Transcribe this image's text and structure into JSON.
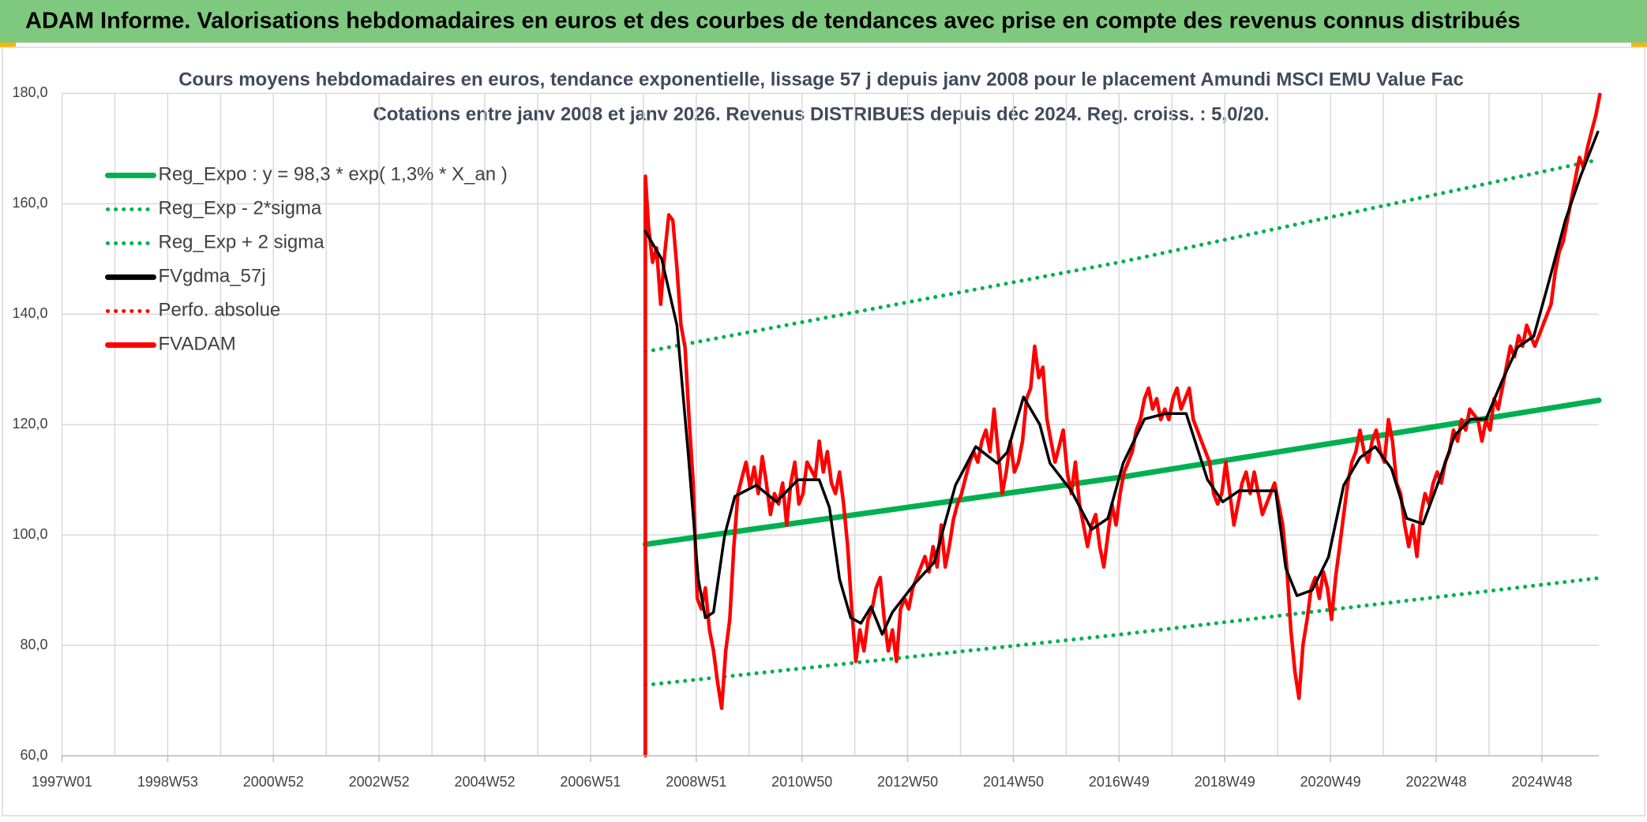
{
  "header": "ADAM Informe. Valorisations hebdomadaires en euros et des courbes de tendances avec prise en compte des revenus connus distribués",
  "chart_data": {
    "type": "line",
    "title": "Cours moyens hebdomadaires en euros, tendance exponentielle, lissage 57 j depuis janv 2008 pour le placement Amundi MSCI EMU Value Fac",
    "subtitle": "Cotations entre janv 2008 et janv 2026. Revenus DISTRIBUES depuis déc 2024. Reg. croiss. : 5,0/20.",
    "xlim": [
      0,
      1512
    ],
    "xticks": [
      {
        "value": 0,
        "label": "1997W01"
      },
      {
        "value": 104,
        "label": "1998W53"
      },
      {
        "value": 208,
        "label": "2000W52"
      },
      {
        "value": 312,
        "label": "2002W52"
      },
      {
        "value": 416,
        "label": "2004W52"
      },
      {
        "value": 520,
        "label": "2006W51"
      },
      {
        "value": 624,
        "label": "2008W51"
      },
      {
        "value": 728,
        "label": "2010W50"
      },
      {
        "value": 832,
        "label": "2012W50"
      },
      {
        "value": 936,
        "label": "2014W50"
      },
      {
        "value": 1040,
        "label": "2016W49"
      },
      {
        "value": 1144,
        "label": "2018W49"
      },
      {
        "value": 1248,
        "label": "2020W49"
      },
      {
        "value": 1352,
        "label": "2022W48"
      },
      {
        "value": 1456,
        "label": "2024W48"
      }
    ],
    "ylim": [
      60,
      180
    ],
    "yticks": [
      {
        "value": 60,
        "label": "60,0"
      },
      {
        "value": 80,
        "label": "80,0"
      },
      {
        "value": 100,
        "label": "100,0"
      },
      {
        "value": 120,
        "label": "120,0"
      },
      {
        "value": 140,
        "label": "140,0"
      },
      {
        "value": 160,
        "label": "160,0"
      },
      {
        "value": 180,
        "label": "180,0"
      }
    ],
    "grid": true,
    "legend": "upper left",
    "series": [
      {
        "name": "Reg_Expo : y = 98,3 * exp( 1,3% *  X_an )",
        "color": "#00b050",
        "style": "solid",
        "x": [
          574,
          1043,
          1512
        ],
        "values": [
          98.3,
          110.5,
          124.4
        ]
      },
      {
        "name": "Reg_Exp - 2*sigma",
        "color": "#00b050",
        "style": "dotted",
        "x": [
          574,
          1043,
          1512
        ],
        "values": [
          72.8,
          82.0,
          92.2
        ]
      },
      {
        "name": "Reg_Exp + 2 sigma",
        "color": "#00b050",
        "style": "dotted",
        "x": [
          574,
          1043,
          1512
        ],
        "values": [
          133.2,
          149.5,
          168.0
        ]
      },
      {
        "name": "FVgdma_57j",
        "color": "#000000",
        "style": "solid",
        "x": [
          574,
          590,
          605,
          616,
          626,
          633,
          641,
          652,
          662,
          683,
          703,
          724,
          745,
          755,
          765,
          776,
          786,
          796,
          807,
          817,
          838,
          858,
          879,
          899,
          920,
          930,
          946,
          962,
          972,
          993,
          1013,
          1029,
          1044,
          1065,
          1086,
          1106,
          1127,
          1142,
          1158,
          1173,
          1194,
          1204,
          1215,
          1230,
          1246,
          1261,
          1277,
          1292,
          1308,
          1323,
          1339,
          1355,
          1370,
          1386,
          1401,
          1417,
          1432,
          1448,
          1463,
          1479,
          1494,
          1511
        ],
        "values": [
          155,
          150,
          138,
          115,
          92,
          85,
          86,
          100,
          107,
          109,
          106,
          110,
          110,
          105,
          92,
          85,
          84,
          87,
          82,
          86,
          91,
          95,
          109,
          116,
          113,
          115,
          125,
          120,
          113,
          108,
          101,
          103,
          113,
          121,
          122,
          122,
          110,
          106,
          108,
          108,
          108,
          94,
          89,
          90,
          96,
          109,
          114,
          116,
          112,
          103,
          102,
          110,
          118,
          121,
          121,
          128,
          134,
          136,
          146,
          157,
          165,
          173
        ]
      },
      {
        "name": "Perfo. absolue",
        "color": "#ff0000",
        "style": "dotted",
        "x": [
          574,
          1043,
          1512
        ],
        "values": [
          null,
          null,
          null
        ]
      },
      {
        "name": "FVADAM",
        "color": "#ff0000",
        "style": "solid",
        "x": [
          574,
          574,
          577,
          581,
          585,
          589,
          593,
          597,
          601,
          605,
          609,
          613,
          617,
          621,
          625,
          629,
          633,
          637,
          641,
          645,
          649,
          653,
          657,
          661,
          665,
          669,
          673,
          677,
          681,
          685,
          689,
          693,
          697,
          701,
          705,
          709,
          713,
          717,
          721,
          725,
          729,
          733,
          737,
          741,
          745,
          749,
          753,
          757,
          761,
          765,
          769,
          773,
          777,
          781,
          785,
          789,
          793,
          797,
          801,
          805,
          809,
          813,
          817,
          821,
          825,
          829,
          833,
          837,
          841,
          845,
          849,
          853,
          857,
          861,
          865,
          869,
          873,
          877,
          881,
          885,
          889,
          893,
          897,
          901,
          905,
          909,
          913,
          917,
          921,
          925,
          929,
          933,
          937,
          941,
          945,
          949,
          953,
          957,
          961,
          965,
          969,
          973,
          977,
          981,
          985,
          989,
          993,
          997,
          1001,
          1005,
          1009,
          1013,
          1017,
          1021,
          1025,
          1029,
          1033,
          1037,
          1041,
          1045,
          1049,
          1053,
          1057,
          1061,
          1065,
          1069,
          1073,
          1077,
          1081,
          1085,
          1089,
          1093,
          1097,
          1101,
          1105,
          1109,
          1113,
          1117,
          1121,
          1125,
          1129,
          1133,
          1137,
          1141,
          1145,
          1149,
          1153,
          1157,
          1161,
          1165,
          1169,
          1173,
          1177,
          1181,
          1185,
          1189,
          1193,
          1197,
          1201,
          1205,
          1209,
          1213,
          1217,
          1221,
          1225,
          1229,
          1233,
          1237,
          1241,
          1245,
          1249,
          1253,
          1257,
          1261,
          1265,
          1269,
          1273,
          1277,
          1281,
          1285,
          1289,
          1293,
          1297,
          1301,
          1305,
          1309,
          1313,
          1317,
          1321,
          1325,
          1329,
          1333,
          1337,
          1341,
          1345,
          1349,
          1353,
          1357,
          1361,
          1365,
          1369,
          1373,
          1377,
          1381,
          1385,
          1389,
          1393,
          1397,
          1401,
          1405,
          1409,
          1413,
          1417,
          1421,
          1425,
          1429,
          1433,
          1437,
          1441,
          1445,
          1449,
          1453,
          1457,
          1461,
          1465,
          1469,
          1473,
          1477,
          1481,
          1485,
          1489,
          1493,
          1497,
          1501,
          1505,
          1509,
          1513
        ],
        "values": [
          60,
          165,
          156,
          149.4,
          152,
          141.8,
          151,
          158,
          157,
          148.4,
          138,
          134,
          120.9,
          109.4,
          88.5,
          86.6,
          90.4,
          82.8,
          79,
          73.3,
          68.6,
          79,
          84.7,
          97.9,
          107.5,
          110.4,
          113.2,
          108.5,
          112.3,
          107.5,
          114.2,
          109.4,
          103.7,
          107.5,
          105.6,
          109.4,
          101.8,
          109.4,
          113.2,
          105.6,
          107.5,
          113.2,
          111.8,
          110.4,
          117,
          111.4,
          115.1,
          109.4,
          107.5,
          111.4,
          105.6,
          97.9,
          86.6,
          77.1,
          82.8,
          79,
          84.7,
          86.6,
          90.4,
          92.3,
          84.7,
          79,
          82.8,
          77.1,
          86.6,
          88.5,
          86.6,
          90.4,
          92.3,
          94.2,
          96.1,
          93.3,
          97.9,
          94.2,
          101.8,
          94.2,
          98,
          102.8,
          105.6,
          107.5,
          110.4,
          113.2,
          115.1,
          113.2,
          117,
          119,
          115.1,
          122.8,
          115.1,
          107.5,
          111.4,
          117,
          111.4,
          113.2,
          117,
          124.7,
          126.6,
          134.2,
          128.5,
          130.4,
          121,
          117,
          113.2,
          116,
          119,
          111.4,
          107.5,
          113.2,
          105.6,
          101.8,
          97.9,
          101.8,
          103.7,
          97.9,
          94.2,
          100,
          105.6,
          101.8,
          107.5,
          111.4,
          113.2,
          115.1,
          119,
          120.9,
          124.7,
          126.6,
          122.8,
          124.7,
          120.9,
          122.8,
          120.9,
          124.7,
          126.6,
          122.8,
          124.7,
          126.6,
          120.9,
          119,
          117,
          115.1,
          113.2,
          107.5,
          105.6,
          107.5,
          113.2,
          107.5,
          101.8,
          105.6,
          109.4,
          111.4,
          107.5,
          111.4,
          107.5,
          103.7,
          105.6,
          107.5,
          109.4,
          105.6,
          101.8,
          94.2,
          82.8,
          75.2,
          70.4,
          80.2,
          84.7,
          90.4,
          92.3,
          88.5,
          93.3,
          90.4,
          84.7,
          92.3,
          97.9,
          103.7,
          109.4,
          113.2,
          115.1,
          119,
          115.1,
          113.2,
          117,
          119,
          115.1,
          113.2,
          120.9,
          117,
          109.4,
          107.5,
          101.8,
          97.9,
          101.8,
          96.1,
          103.7,
          107.5,
          105.6,
          109.4,
          111.4,
          109.4,
          113.2,
          115.1,
          119,
          117,
          120.9,
          119,
          122.8,
          121.8,
          120.9,
          117,
          120.9,
          119,
          124.7,
          122.8,
          126.6,
          130.4,
          134.2,
          132.3,
          136.1,
          134.2,
          138,
          136.1,
          134.2,
          136.1,
          138,
          139.9,
          141.8,
          147.5,
          151.3,
          153.2,
          157,
          160.8,
          164.6,
          168.4,
          166.5,
          170.3,
          173.2,
          176,
          179.8
        ]
      }
    ]
  }
}
